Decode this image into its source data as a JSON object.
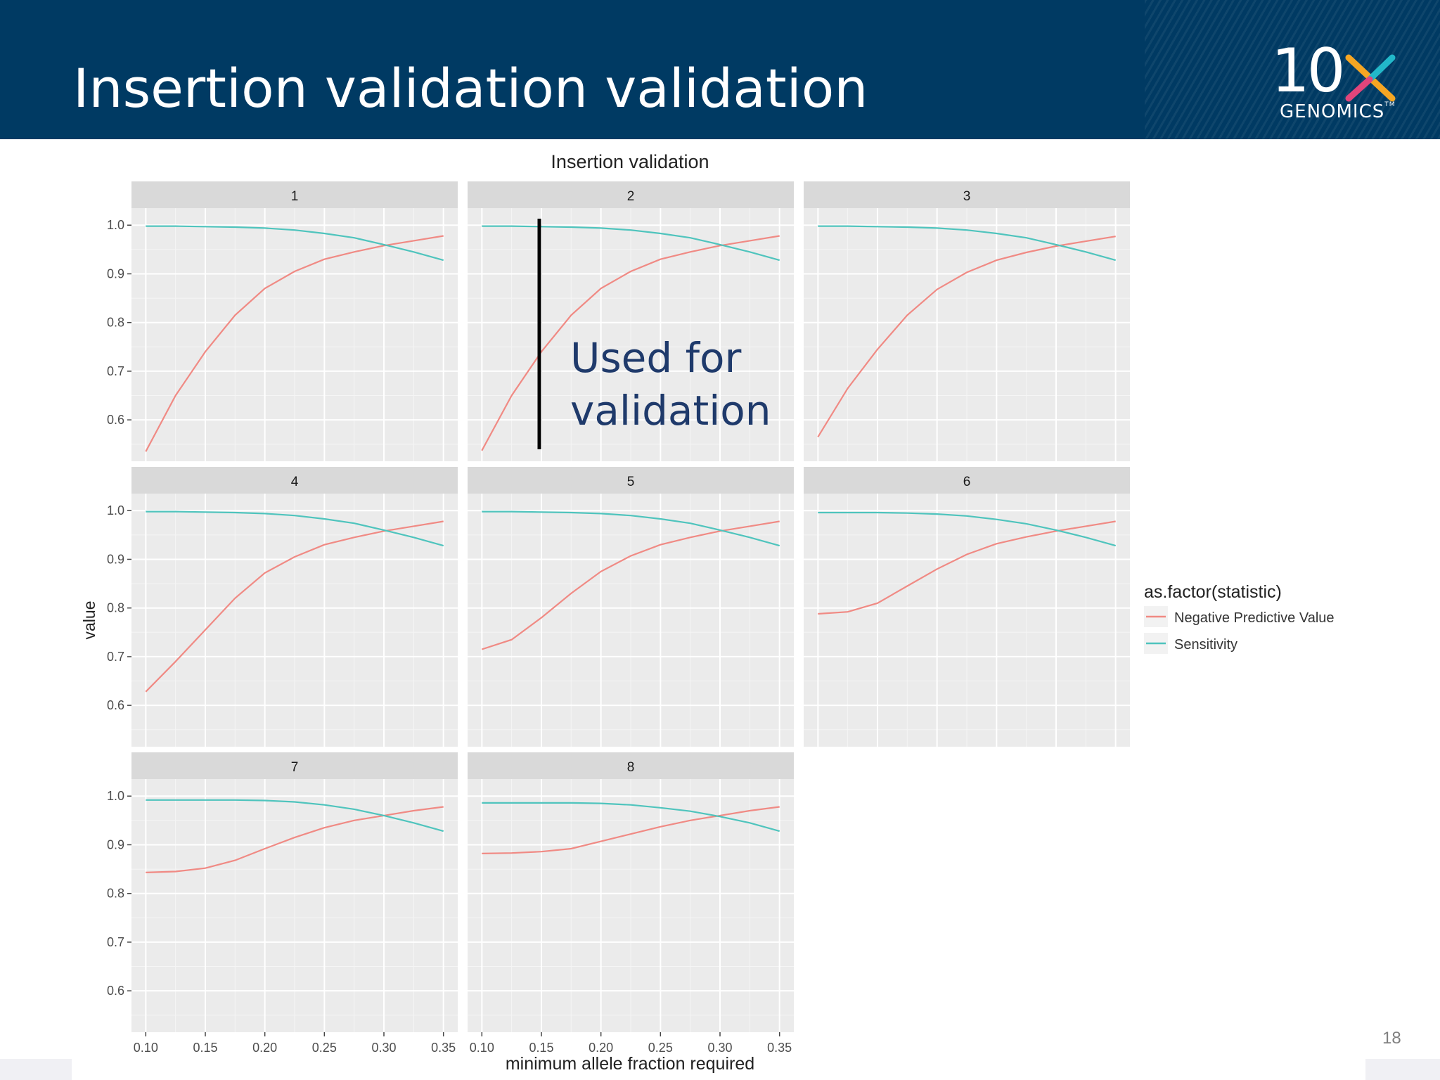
{
  "slide": {
    "title": "Insertion validation validation",
    "page_number": "18",
    "annotation_lines": [
      "Used for",
      "validation"
    ],
    "header_color": "#003a63",
    "annotation_color": "#1f3a6b"
  },
  "logo": {
    "digits": "10",
    "letter": "x",
    "wordmark": "GENOMICS",
    "tm": "TM"
  },
  "chart_data": {
    "type": "line",
    "title": "Insertion validation",
    "xlabel": "minimum allele fraction required",
    "ylabel": "value",
    "xlim": [
      0.088,
      0.362
    ],
    "ylim": [
      0.515,
      1.035
    ],
    "x_ticks": [
      0.1,
      0.15,
      0.2,
      0.25,
      0.3,
      0.35
    ],
    "x_tick_labels": [
      "0.10",
      "0.15",
      "0.20",
      "0.25",
      "0.30",
      "0.35"
    ],
    "y_ticks": [
      0.6,
      0.7,
      0.8,
      0.9,
      1.0
    ],
    "y_tick_labels": [
      "0.6",
      "0.7",
      "0.8",
      "0.9",
      "1.0"
    ],
    "x": [
      0.1,
      0.125,
      0.15,
      0.175,
      0.2,
      0.225,
      0.25,
      0.275,
      0.3,
      0.325,
      0.35
    ],
    "grid": true,
    "legend": {
      "title": "as.factor(statistic)",
      "position": "right",
      "entries": [
        {
          "label": "Negative Predictive Value",
          "color": "#f08a84"
        },
        {
          "label": "Sensitivity",
          "color": "#4fc4bd"
        }
      ]
    },
    "panels": [
      {
        "label": "1",
        "npv": [
          0.535,
          0.65,
          0.74,
          0.815,
          0.87,
          0.905,
          0.93,
          0.945,
          0.958,
          0.968,
          0.978
        ],
        "sensitivity": [
          0.998,
          0.998,
          0.997,
          0.996,
          0.994,
          0.99,
          0.983,
          0.974,
          0.96,
          0.945,
          0.928
        ]
      },
      {
        "label": "2",
        "npv": [
          0.537,
          0.65,
          0.74,
          0.815,
          0.87,
          0.905,
          0.93,
          0.945,
          0.958,
          0.968,
          0.978
        ],
        "sensitivity": [
          0.998,
          0.998,
          0.997,
          0.996,
          0.994,
          0.99,
          0.983,
          0.974,
          0.96,
          0.945,
          0.928
        ]
      },
      {
        "label": "3",
        "npv": [
          0.565,
          0.665,
          0.745,
          0.815,
          0.868,
          0.903,
          0.928,
          0.944,
          0.957,
          0.967,
          0.977
        ],
        "sensitivity": [
          0.998,
          0.998,
          0.997,
          0.996,
          0.994,
          0.99,
          0.983,
          0.974,
          0.96,
          0.945,
          0.928
        ]
      },
      {
        "label": "4",
        "npv": [
          0.628,
          0.69,
          0.755,
          0.82,
          0.872,
          0.905,
          0.93,
          0.945,
          0.958,
          0.968,
          0.978
        ],
        "sensitivity": [
          0.998,
          0.998,
          0.997,
          0.996,
          0.994,
          0.99,
          0.983,
          0.974,
          0.96,
          0.945,
          0.928
        ]
      },
      {
        "label": "5",
        "npv": [
          0.715,
          0.735,
          0.78,
          0.83,
          0.875,
          0.907,
          0.93,
          0.945,
          0.958,
          0.968,
          0.978
        ],
        "sensitivity": [
          0.998,
          0.998,
          0.997,
          0.996,
          0.994,
          0.99,
          0.983,
          0.974,
          0.96,
          0.945,
          0.928
        ]
      },
      {
        "label": "6",
        "npv": [
          0.788,
          0.792,
          0.81,
          0.845,
          0.88,
          0.91,
          0.932,
          0.946,
          0.958,
          0.968,
          0.978
        ],
        "sensitivity": [
          0.996,
          0.996,
          0.996,
          0.995,
          0.993,
          0.989,
          0.982,
          0.973,
          0.96,
          0.945,
          0.928
        ]
      },
      {
        "label": "7",
        "npv": [
          0.843,
          0.845,
          0.852,
          0.868,
          0.892,
          0.915,
          0.935,
          0.95,
          0.96,
          0.97,
          0.978
        ],
        "sensitivity": [
          0.992,
          0.992,
          0.992,
          0.992,
          0.991,
          0.988,
          0.982,
          0.973,
          0.96,
          0.945,
          0.928
        ]
      },
      {
        "label": "8",
        "npv": [
          0.882,
          0.883,
          0.886,
          0.892,
          0.907,
          0.922,
          0.937,
          0.95,
          0.96,
          0.97,
          0.978
        ],
        "sensitivity": [
          0.986,
          0.986,
          0.986,
          0.986,
          0.985,
          0.982,
          0.976,
          0.969,
          0.958,
          0.945,
          0.928
        ]
      }
    ]
  }
}
